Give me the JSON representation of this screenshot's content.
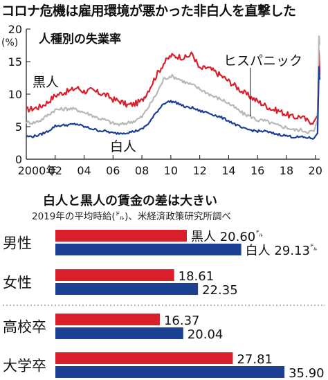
{
  "page": {
    "main_title": "コロナ危機は雇用環境が悪かった非白人を直撃した"
  },
  "colors": {
    "black": "#d81f2a",
    "hispanic": "#b8b8b8",
    "white": "#1c3f93",
    "text": "#111111"
  },
  "chart_data": [
    {
      "type": "line",
      "title": "人種別の失業率",
      "ylabel": "(%)",
      "ylim": [
        0,
        20
      ],
      "yticks": [
        "0",
        "5",
        "10",
        "15",
        "20"
      ],
      "xlim": [
        2000,
        2020.3
      ],
      "xtick_values": [
        2000,
        2002,
        2004,
        2006,
        2008,
        2010,
        2012,
        2014,
        2016,
        2018,
        2020
      ],
      "xtick_labels": [
        "2000年",
        "02",
        "04",
        "06",
        "08",
        "10",
        "12",
        "14",
        "16",
        "18",
        "20"
      ],
      "grid": false,
      "series": [
        {
          "name": "黒人",
          "color": "#d81f2a",
          "points": [
            [
              2000,
              7.6
            ],
            [
              2000.5,
              7.8
            ],
            [
              2001,
              8.1
            ],
            [
              2001.5,
              8.8
            ],
            [
              2002,
              9.8
            ],
            [
              2002.5,
              10.2
            ],
            [
              2003,
              10.5
            ],
            [
              2003.5,
              11.0
            ],
            [
              2004,
              10.4
            ],
            [
              2004.5,
              10.6
            ],
            [
              2005,
              10.2
            ],
            [
              2005.5,
              9.9
            ],
            [
              2006,
              9.2
            ],
            [
              2006.5,
              8.9
            ],
            [
              2007,
              8.3
            ],
            [
              2007.5,
              8.5
            ],
            [
              2008,
              9.0
            ],
            [
              2008.5,
              10.8
            ],
            [
              2009,
              12.9
            ],
            [
              2009.5,
              14.7
            ],
            [
              2010,
              15.9
            ],
            [
              2010.5,
              15.8
            ],
            [
              2011,
              15.6
            ],
            [
              2011.5,
              16.2
            ],
            [
              2012,
              13.8
            ],
            [
              2012.5,
              14.1
            ],
            [
              2013,
              13.5
            ],
            [
              2013.5,
              12.8
            ],
            [
              2014,
              12.0
            ],
            [
              2014.5,
              11.2
            ],
            [
              2015,
              10.3
            ],
            [
              2015.5,
              9.6
            ],
            [
              2016,
              8.9
            ],
            [
              2016.5,
              8.3
            ],
            [
              2017,
              7.7
            ],
            [
              2017.5,
              7.4
            ],
            [
              2018,
              6.9
            ],
            [
              2018.5,
              6.4
            ],
            [
              2019,
              6.6
            ],
            [
              2019.5,
              5.8
            ],
            [
              2019.9,
              5.8
            ],
            [
              2020.15,
              6.7
            ],
            [
              2020.25,
              16.7
            ],
            [
              2020.3,
              13.0
            ]
          ]
        },
        {
          "name": "ヒスパニック",
          "color": "#b8b8b8",
          "points": [
            [
              2000,
              5.7
            ],
            [
              2000.5,
              5.6
            ],
            [
              2001,
              6.0
            ],
            [
              2001.5,
              6.8
            ],
            [
              2002,
              7.6
            ],
            [
              2002.5,
              7.7
            ],
            [
              2003,
              7.8
            ],
            [
              2003.5,
              7.6
            ],
            [
              2004,
              7.2
            ],
            [
              2004.5,
              6.8
            ],
            [
              2005,
              6.3
            ],
            [
              2005.5,
              6.0
            ],
            [
              2006,
              5.5
            ],
            [
              2006.5,
              5.3
            ],
            [
              2007,
              5.6
            ],
            [
              2007.5,
              5.9
            ],
            [
              2008,
              6.5
            ],
            [
              2008.5,
              8.2
            ],
            [
              2009,
              10.0
            ],
            [
              2009.5,
              12.3
            ],
            [
              2010,
              12.8
            ],
            [
              2010.5,
              12.4
            ],
            [
              2011,
              11.8
            ],
            [
              2011.5,
              11.4
            ],
            [
              2012,
              10.8
            ],
            [
              2012.5,
              10.2
            ],
            [
              2013,
              9.6
            ],
            [
              2013.5,
              9.2
            ],
            [
              2014,
              8.6
            ],
            [
              2014.5,
              7.8
            ],
            [
              2015,
              7.0
            ],
            [
              2015.5,
              6.6
            ],
            [
              2016,
              6.0
            ],
            [
              2016.5,
              5.9
            ],
            [
              2017,
              5.5
            ],
            [
              2017.5,
              5.1
            ],
            [
              2018,
              4.9
            ],
            [
              2018.5,
              4.5
            ],
            [
              2019,
              4.5
            ],
            [
              2019.5,
              4.2
            ],
            [
              2019.9,
              4.3
            ],
            [
              2020.15,
              6.0
            ],
            [
              2020.25,
              18.9
            ],
            [
              2020.3,
              17.6
            ]
          ]
        },
        {
          "name": "白人",
          "color": "#1c3f93",
          "points": [
            [
              2000,
              3.5
            ],
            [
              2000.5,
              3.5
            ],
            [
              2001,
              3.8
            ],
            [
              2001.5,
              4.3
            ],
            [
              2002,
              5.1
            ],
            [
              2002.5,
              5.2
            ],
            [
              2003,
              5.3
            ],
            [
              2003.5,
              5.4
            ],
            [
              2004,
              5.0
            ],
            [
              2004.5,
              4.7
            ],
            [
              2005,
              4.4
            ],
            [
              2005.5,
              4.3
            ],
            [
              2006,
              4.0
            ],
            [
              2006.5,
              4.0
            ],
            [
              2007,
              4.1
            ],
            [
              2007.5,
              4.3
            ],
            [
              2008,
              4.6
            ],
            [
              2008.5,
              5.6
            ],
            [
              2009,
              7.2
            ],
            [
              2009.5,
              8.6
            ],
            [
              2010,
              8.9
            ],
            [
              2010.5,
              8.6
            ],
            [
              2011,
              8.0
            ],
            [
              2011.5,
              7.9
            ],
            [
              2012,
              7.4
            ],
            [
              2012.5,
              7.2
            ],
            [
              2013,
              6.8
            ],
            [
              2013.5,
              6.4
            ],
            [
              2014,
              5.9
            ],
            [
              2014.5,
              5.3
            ],
            [
              2015,
              4.7
            ],
            [
              2015.5,
              4.5
            ],
            [
              2016,
              4.3
            ],
            [
              2016.5,
              4.3
            ],
            [
              2017,
              4.0
            ],
            [
              2017.5,
              3.8
            ],
            [
              2018,
              3.6
            ],
            [
              2018.5,
              3.4
            ],
            [
              2019,
              3.4
            ],
            [
              2019.5,
              3.3
            ],
            [
              2019.9,
              3.2
            ],
            [
              2020.15,
              4.0
            ],
            [
              2020.25,
              14.2
            ],
            [
              2020.3,
              12.2
            ]
          ]
        }
      ],
      "annotations": {
        "black_label": "黒人",
        "hispanic_label": "ヒスパニック",
        "white_label": "白人"
      }
    },
    {
      "type": "bar",
      "title": "白人と黒人の賃金の差は大きい",
      "subtitle": "2019年の平均時給(㌦)、米経済政策研究所調べ",
      "categories": [
        "男性",
        "女性",
        "高校卒",
        "大学卒"
      ],
      "series": [
        {
          "name": "黒人",
          "color": "#d81f2a",
          "values": [
            20.6,
            18.61,
            16.37,
            27.81
          ],
          "labels": [
            "20.60",
            "18.61",
            "16.37",
            "27.81"
          ]
        },
        {
          "name": "白人",
          "color": "#1c3f93",
          "values": [
            29.13,
            22.35,
            20.04,
            35.9
          ],
          "labels": [
            "29.13",
            "22.35",
            "20.04",
            "35.90"
          ]
        }
      ],
      "unit": "㌦",
      "xlim": [
        0,
        36
      ]
    }
  ]
}
